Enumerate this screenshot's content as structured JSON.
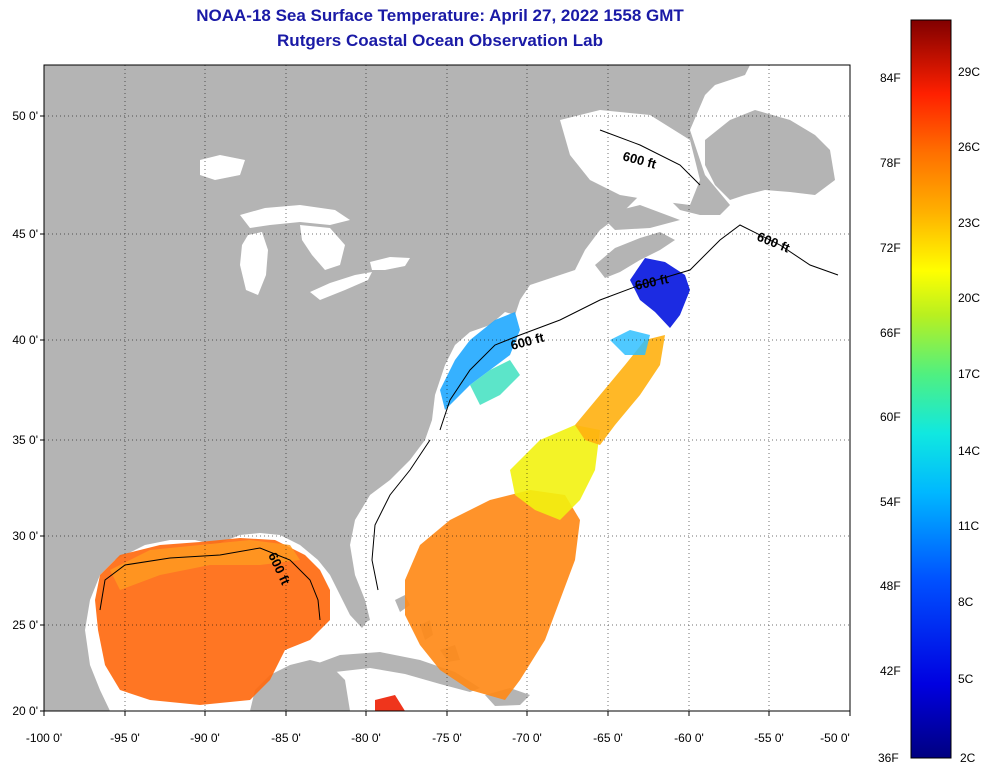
{
  "header": {
    "title": "NOAA-18 Sea Surface Temperature:  April 27, 2022 1558 GMT",
    "subtitle": "Rutgers Coastal Ocean Observation Lab"
  },
  "axes": {
    "x_ticks": [
      "-100 0'",
      "-95 0'",
      "-90 0'",
      "-85 0'",
      "-80 0'",
      "-75 0'",
      "-70 0'",
      "-65 0'",
      "-60 0'",
      "-55 0'",
      "-50 0'"
    ],
    "y_ticks": [
      "50 0'",
      "45 0'",
      "40 0'",
      "35 0'",
      "30 0'",
      "25 0'",
      "20 0'"
    ]
  },
  "contours": [
    "600 ft",
    "600 ft",
    "600 ft",
    "600 ft",
    "600 ft"
  ],
  "colorbar": {
    "f_labels": [
      "84F",
      "78F",
      "72F",
      "66F",
      "60F",
      "54F",
      "48F",
      "42F",
      "36F"
    ],
    "c_labels": [
      "29C",
      "26C",
      "23C",
      "20C",
      "17C",
      "14C",
      "11C",
      "8C",
      "5C",
      "2C"
    ]
  },
  "colors": {
    "land": "#b4b4b4",
    "ocean": "#ffffff",
    "title": "#1a1aa6"
  }
}
